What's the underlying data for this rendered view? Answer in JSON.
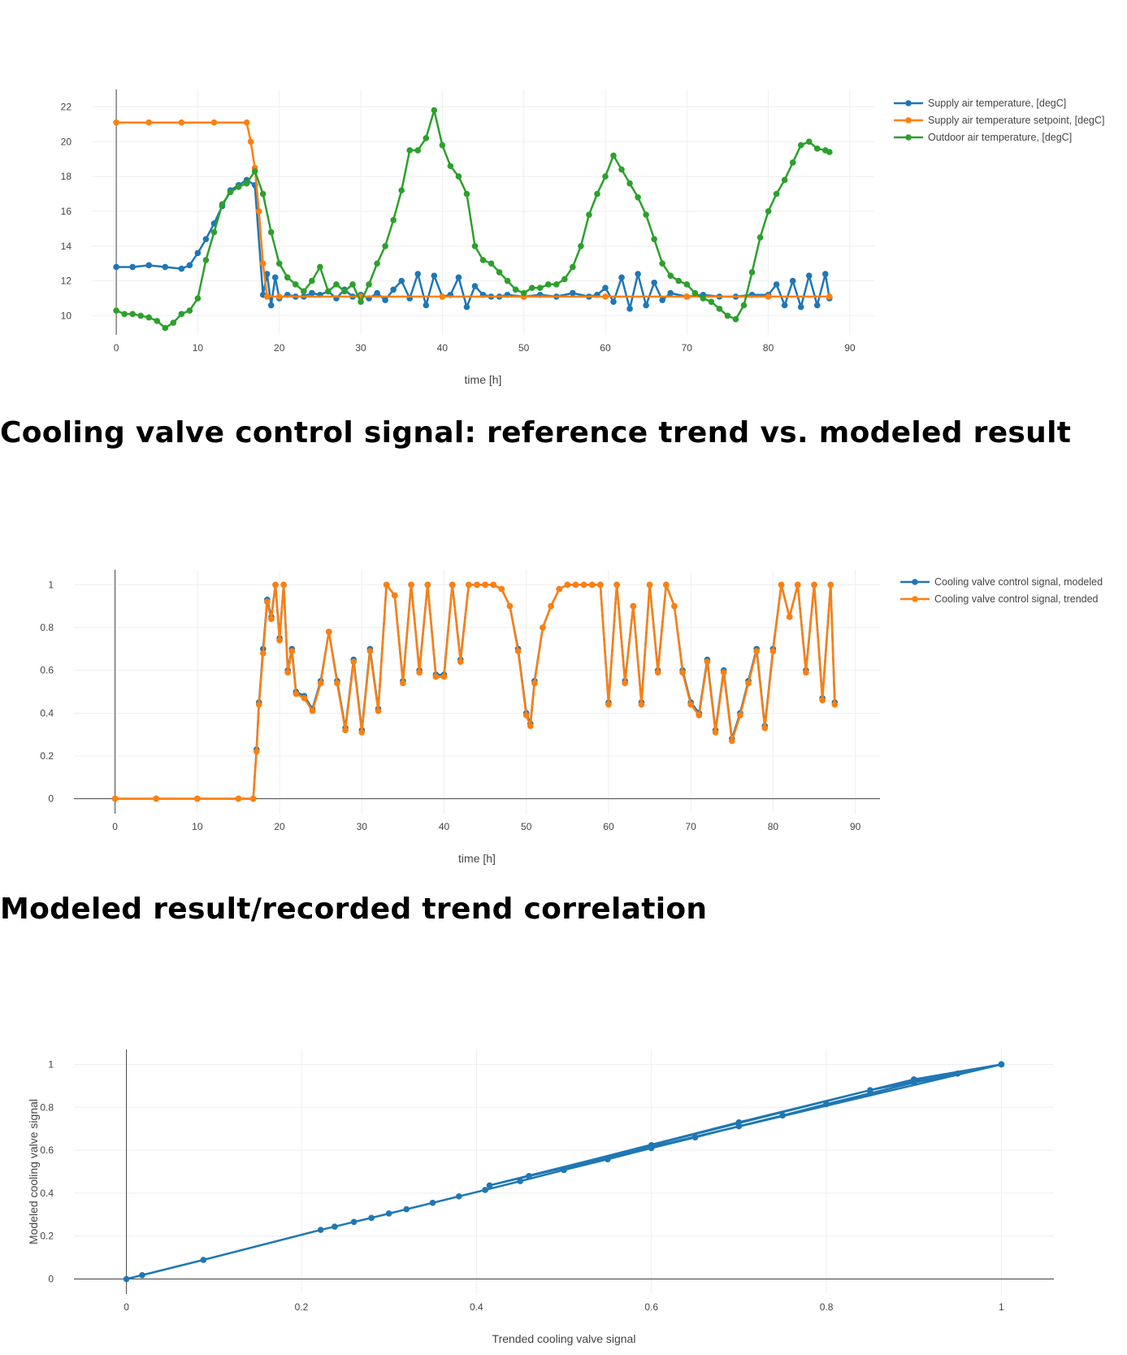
{
  "headings": {
    "valve": "Cooling valve control signal: reference trend vs. modeled result",
    "correlation": "Modeled result/recorded trend correlation"
  },
  "chart_data": [
    {
      "type": "line",
      "markers": true,
      "xlabel": "time [h]",
      "ylabel": "",
      "xlim": [
        -3,
        93
      ],
      "ylim": [
        8.9,
        23
      ],
      "x_ticks": [
        0,
        10,
        20,
        30,
        40,
        50,
        60,
        70,
        80,
        90
      ],
      "y_ticks": [
        10,
        12,
        14,
        16,
        18,
        20,
        22
      ],
      "grid": true,
      "legend_position": "top-right",
      "series": [
        {
          "name": "Supply air temperature, [degC]",
          "color": "#1f77b4",
          "x": [
            0,
            2,
            4,
            6,
            8,
            9,
            10,
            11,
            12,
            13,
            14,
            15,
            16,
            17,
            18,
            18.5,
            19,
            19.5,
            20,
            21,
            22,
            23,
            24,
            25,
            26,
            27,
            28,
            29,
            30,
            31,
            32,
            33,
            34,
            35,
            36,
            37,
            38,
            39,
            40,
            41,
            42,
            43,
            44,
            45,
            46,
            47,
            48,
            50,
            52,
            54,
            56,
            58,
            59,
            60,
            61,
            62,
            63,
            64,
            65,
            66,
            67,
            68,
            70,
            72,
            74,
            76,
            78,
            80,
            81,
            82,
            83,
            84,
            85,
            86,
            87,
            87.5
          ],
          "y": [
            12.8,
            12.8,
            12.9,
            12.8,
            12.7,
            12.9,
            13.6,
            14.4,
            15.3,
            16.3,
            17.2,
            17.5,
            17.8,
            17.5,
            11.2,
            12.4,
            10.6,
            12.2,
            11.0,
            11.2,
            11.1,
            11.1,
            11.3,
            11.2,
            11.4,
            11.0,
            11.5,
            11.1,
            11.2,
            11.0,
            11.3,
            10.9,
            11.5,
            12.0,
            11.0,
            12.4,
            10.6,
            12.3,
            11.1,
            11.2,
            12.2,
            10.5,
            11.7,
            11.2,
            11.1,
            11.1,
            11.2,
            11.1,
            11.2,
            11.1,
            11.3,
            11.1,
            11.2,
            11.6,
            10.8,
            12.2,
            10.4,
            12.4,
            10.6,
            11.9,
            10.9,
            11.3,
            11.1,
            11.2,
            11.1,
            11.1,
            11.2,
            11.2,
            11.8,
            10.6,
            12.0,
            10.5,
            12.3,
            10.6,
            12.4,
            11.0
          ]
        },
        {
          "name": "Supply air temperature setpoint, [degC]",
          "color": "#ff7f0e",
          "x": [
            0,
            4,
            8,
            12,
            16,
            16.5,
            17,
            17.5,
            18,
            18.5,
            20,
            30,
            40,
            50,
            60,
            70,
            80,
            87.5
          ],
          "y": [
            21.1,
            21.1,
            21.1,
            21.1,
            21.1,
            20.0,
            18.5,
            16.0,
            13.0,
            11.1,
            11.1,
            11.1,
            11.1,
            11.1,
            11.1,
            11.1,
            11.1,
            11.1
          ]
        },
        {
          "name": "Outdoor air temperature, [degC]",
          "color": "#2ca02c",
          "x": [
            0,
            1,
            2,
            3,
            4,
            5,
            6,
            7,
            8,
            9,
            10,
            11,
            12,
            13,
            14,
            15,
            16,
            17,
            18,
            19,
            20,
            21,
            22,
            23,
            24,
            25,
            26,
            27,
            28,
            29,
            30,
            31,
            32,
            33,
            34,
            35,
            36,
            37,
            38,
            39,
            40,
            41,
            42,
            43,
            44,
            45,
            46,
            47,
            48,
            49,
            50,
            51,
            52,
            53,
            54,
            55,
            56,
            57,
            58,
            59,
            60,
            61,
            62,
            63,
            64,
            65,
            66,
            67,
            68,
            69,
            70,
            71,
            72,
            73,
            74,
            75,
            76,
            77,
            78,
            79,
            80,
            81,
            82,
            83,
            84,
            85,
            86,
            87,
            87.5
          ],
          "y": [
            10.3,
            10.1,
            10.1,
            10.0,
            9.9,
            9.7,
            9.3,
            9.6,
            10.1,
            10.3,
            11.0,
            13.2,
            14.8,
            16.4,
            17.1,
            17.4,
            17.6,
            18.3,
            17.0,
            14.8,
            13.0,
            12.2,
            11.8,
            11.4,
            12.0,
            12.8,
            11.4,
            11.8,
            11.4,
            11.8,
            10.8,
            11.8,
            13.0,
            14.0,
            15.5,
            17.2,
            19.5,
            19.5,
            20.2,
            21.8,
            19.8,
            18.6,
            18.0,
            17.0,
            14.0,
            13.2,
            13.0,
            12.5,
            12.0,
            11.5,
            11.3,
            11.6,
            11.6,
            11.8,
            11.8,
            12.1,
            12.8,
            14.0,
            15.8,
            17.0,
            18.0,
            19.2,
            18.4,
            17.6,
            16.8,
            15.8,
            14.4,
            13.0,
            12.3,
            12.0,
            11.8,
            11.3,
            11.0,
            10.8,
            10.4,
            10.0,
            9.8,
            10.6,
            12.5,
            14.5,
            16.0,
            17.0,
            17.8,
            18.8,
            19.8,
            20.0,
            19.6,
            19.5,
            19.4
          ]
        }
      ]
    },
    {
      "type": "line",
      "markers": true,
      "xlabel": "time [h]",
      "ylabel": "",
      "xlim": [
        -5,
        93
      ],
      "ylim": [
        -0.07,
        1.07
      ],
      "x_ticks": [
        0,
        10,
        20,
        30,
        40,
        50,
        60,
        70,
        80,
        90
      ],
      "y_ticks": [
        0,
        0.2,
        0.4,
        0.6,
        0.8,
        1
      ],
      "grid": true,
      "legend_position": "top-right",
      "series": [
        {
          "name": "Cooling valve control signal, modeled",
          "color": "#1f77b4",
          "x": [
            0,
            5,
            10,
            15,
            16.8,
            17.2,
            17.5,
            18,
            18.5,
            19,
            19.5,
            20,
            20.5,
            21,
            21.5,
            22,
            23,
            24,
            25,
            26,
            27,
            28,
            29,
            30,
            31,
            32,
            33,
            34,
            35,
            36,
            37,
            38,
            39,
            40,
            41,
            42,
            43,
            44,
            45,
            46,
            47,
            48,
            49,
            50,
            50.5,
            51,
            52,
            53,
            54,
            55,
            56,
            57,
            58,
            59,
            60,
            61,
            62,
            63,
            64,
            65,
            66,
            67,
            68,
            69,
            70,
            71,
            72,
            73,
            74,
            75,
            76,
            77,
            78,
            79,
            80,
            81,
            82,
            83,
            84,
            85,
            86,
            87,
            87.5
          ],
          "y": [
            0,
            0,
            0,
            0,
            0,
            0.23,
            0.45,
            0.7,
            0.93,
            0.85,
            1.0,
            0.75,
            1.0,
            0.6,
            0.7,
            0.5,
            0.48,
            0.42,
            0.55,
            0.78,
            0.55,
            0.33,
            0.65,
            0.32,
            0.7,
            0.42,
            1.0,
            0.95,
            0.55,
            1.0,
            0.6,
            1.0,
            0.58,
            0.58,
            1.0,
            0.65,
            1.0,
            1.0,
            1.0,
            1.0,
            0.98,
            0.9,
            0.7,
            0.4,
            0.35,
            0.55,
            0.8,
            0.9,
            0.98,
            1.0,
            1.0,
            1.0,
            1.0,
            1.0,
            0.45,
            1.0,
            0.55,
            0.9,
            0.45,
            1.0,
            0.6,
            1.0,
            0.9,
            0.6,
            0.45,
            0.4,
            0.65,
            0.32,
            0.6,
            0.28,
            0.4,
            0.55,
            0.7,
            0.34,
            0.7,
            1.0,
            0.85,
            1.0,
            0.6,
            1.0,
            0.47,
            1.0,
            0.45
          ]
        },
        {
          "name": "Cooling valve control signal, trended",
          "color": "#ff7f0e",
          "x": [
            0,
            5,
            10,
            15,
            16.8,
            17.2,
            17.5,
            18,
            18.5,
            19,
            19.5,
            20,
            20.5,
            21,
            21.5,
            22,
            23,
            24,
            25,
            26,
            27,
            28,
            29,
            30,
            31,
            32,
            33,
            34,
            35,
            36,
            37,
            38,
            39,
            40,
            41,
            42,
            43,
            44,
            45,
            46,
            47,
            48,
            49,
            50,
            50.5,
            51,
            52,
            53,
            54,
            55,
            56,
            57,
            58,
            59,
            60,
            61,
            62,
            63,
            64,
            65,
            66,
            67,
            68,
            69,
            70,
            71,
            72,
            73,
            74,
            75,
            76,
            77,
            78,
            79,
            80,
            81,
            82,
            83,
            84,
            85,
            86,
            87,
            87.5
          ],
          "y": [
            0,
            0,
            0,
            0,
            0,
            0.22,
            0.44,
            0.68,
            0.92,
            0.84,
            1.0,
            0.74,
            1.0,
            0.59,
            0.69,
            0.49,
            0.47,
            0.41,
            0.54,
            0.78,
            0.54,
            0.32,
            0.64,
            0.31,
            0.69,
            0.41,
            1.0,
            0.95,
            0.54,
            1.0,
            0.59,
            1.0,
            0.57,
            0.57,
            1.0,
            0.64,
            1.0,
            1.0,
            1.0,
            1.0,
            0.98,
            0.9,
            0.69,
            0.39,
            0.34,
            0.54,
            0.8,
            0.9,
            0.98,
            1.0,
            1.0,
            1.0,
            1.0,
            1.0,
            0.44,
            1.0,
            0.54,
            0.9,
            0.44,
            1.0,
            0.59,
            1.0,
            0.9,
            0.59,
            0.44,
            0.39,
            0.64,
            0.31,
            0.59,
            0.27,
            0.39,
            0.54,
            0.69,
            0.33,
            0.69,
            1.0,
            0.85,
            1.0,
            0.59,
            1.0,
            0.46,
            1.0,
            0.44
          ]
        }
      ]
    },
    {
      "type": "line",
      "markers": true,
      "xlabel": "Trended cooling valve signal",
      "ylabel": "Modeled cooling valve signal",
      "xlim": [
        -0.06,
        1.06
      ],
      "ylim": [
        -0.07,
        1.07
      ],
      "x_ticks": [
        0,
        0.2,
        0.4,
        0.6,
        0.8,
        1
      ],
      "y_ticks": [
        0,
        0.2,
        0.4,
        0.6,
        0.8,
        1
      ],
      "grid": true,
      "series": [
        {
          "name": "",
          "color": "#1f77b4",
          "x": [
            0,
            0.018,
            0.088,
            0.222,
            0.238,
            0.26,
            0.28,
            0.3,
            0.32,
            0.35,
            0.38,
            0.41,
            0.45,
            0.5,
            0.55,
            0.6,
            0.65,
            0.7,
            0.75,
            0.8,
            0.85,
            0.9,
            0.95,
            1.0,
            0.415,
            0.6,
            0.85,
            1.0,
            0.46,
            0.7,
            0.9,
            1.0
          ],
          "y": [
            0,
            0.018,
            0.089,
            0.229,
            0.244,
            0.266,
            0.285,
            0.305,
            0.325,
            0.355,
            0.385,
            0.415,
            0.456,
            0.508,
            0.558,
            0.61,
            0.66,
            0.712,
            0.762,
            0.815,
            0.865,
            0.915,
            0.957,
            1.0,
            0.436,
            0.624,
            0.88,
            1.0,
            0.48,
            0.73,
            0.93,
            1.0
          ]
        }
      ]
    }
  ]
}
